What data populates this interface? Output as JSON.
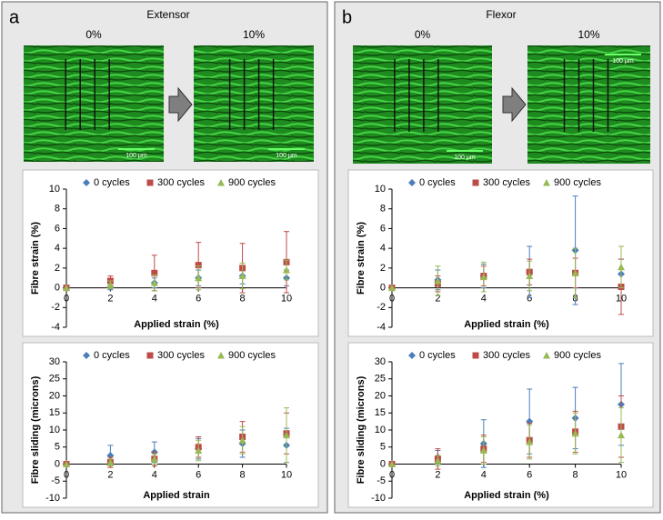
{
  "panels": [
    {
      "label": "a",
      "title": "Extensor",
      "images": [
        {
          "label": "0%",
          "scale": "100 μm"
        },
        {
          "label": "10%",
          "scale": "100 μm"
        }
      ]
    },
    {
      "label": "b",
      "title": "Flexor",
      "images": [
        {
          "label": "0%",
          "scale": "100 μm"
        },
        {
          "label": "10%",
          "scale": "100 μm"
        }
      ]
    }
  ],
  "chart_data": [
    {
      "type": "scatter",
      "y_label": "Fibre strain (%)",
      "x_label": "Applied strain (%)",
      "x": [
        0,
        2,
        4,
        6,
        8,
        10
      ],
      "xlim": [
        0,
        10
      ],
      "xticks": [
        0,
        2,
        4,
        6,
        8,
        10
      ],
      "ylim": [
        -4,
        10
      ],
      "yticks": [
        -4,
        -2,
        0,
        2,
        4,
        6,
        8,
        10
      ],
      "series": [
        {
          "name": "0 cycles",
          "color": "#4a7ebb",
          "marker": "diamond",
          "values": [
            0,
            0.1,
            0.5,
            1.0,
            1.2,
            1.0
          ],
          "errors": [
            0,
            0.3,
            0.5,
            0.8,
            0.8,
            0.8
          ]
        },
        {
          "name": "300 cycles",
          "color": "#be4b48",
          "marker": "square",
          "values": [
            0,
            0.7,
            1.5,
            2.3,
            2.0,
            2.6
          ],
          "errors": [
            0,
            0.5,
            1.8,
            2.3,
            2.5,
            3.1
          ]
        },
        {
          "name": "900 cycles",
          "color": "#98b954",
          "marker": "triangle",
          "values": [
            0,
            0.3,
            0.5,
            1.0,
            1.2,
            1.8
          ],
          "errors": [
            0,
            0.4,
            0.8,
            1.2,
            1.3,
            1.0
          ]
        }
      ]
    },
    {
      "type": "scatter",
      "y_label": "Fibre sliding (microns)",
      "x_label": "Applied strain",
      "x": [
        0,
        2,
        4,
        6,
        8,
        10
      ],
      "xlim": [
        0,
        10
      ],
      "xticks": [
        0,
        2,
        4,
        6,
        8,
        10
      ],
      "ylim": [
        -10,
        30
      ],
      "yticks": [
        -10,
        -5,
        0,
        5,
        10,
        15,
        20,
        25,
        30
      ],
      "series": [
        {
          "name": "0 cycles",
          "color": "#4a7ebb",
          "marker": "diamond",
          "values": [
            0,
            2.5,
            3.5,
            4.5,
            6,
            5.5
          ],
          "errors": [
            0,
            3,
            3,
            3,
            4,
            5
          ]
        },
        {
          "name": "300 cycles",
          "color": "#be4b48",
          "marker": "square",
          "values": [
            0,
            0.5,
            1.5,
            5,
            8,
            9
          ],
          "errors": [
            0,
            1.5,
            2,
            3,
            4.5,
            6
          ]
        },
        {
          "name": "900 cycles",
          "color": "#98b954",
          "marker": "triangle",
          "values": [
            0,
            0.5,
            1.5,
            4,
            7,
            8.5
          ],
          "errors": [
            0,
            1,
            1.5,
            3,
            4,
            8
          ]
        }
      ]
    },
    {
      "type": "scatter",
      "y_label": "Fibre strain (%)",
      "x_label": "Applied strain (%)",
      "x": [
        0,
        2,
        4,
        6,
        8,
        10
      ],
      "xlim": [
        0,
        10
      ],
      "xticks": [
        0,
        2,
        4,
        6,
        8,
        10
      ],
      "ylim": [
        -4,
        10
      ],
      "yticks": [
        -4,
        -2,
        0,
        2,
        4,
        6,
        8,
        10
      ],
      "series": [
        {
          "name": "0 cycles",
          "color": "#4a7ebb",
          "marker": "diamond",
          "values": [
            0,
            0.8,
            1.2,
            1.6,
            3.8,
            1.4
          ],
          "errors": [
            0,
            1,
            1.2,
            2.6,
            5.5,
            1.5
          ]
        },
        {
          "name": "300 cycles",
          "color": "#be4b48",
          "marker": "square",
          "values": [
            0,
            0.4,
            1.2,
            1.6,
            1.5,
            0.1
          ],
          "errors": [
            0,
            0.8,
            1,
            1.3,
            1.5,
            2.8
          ]
        },
        {
          "name": "900 cycles",
          "color": "#98b954",
          "marker": "triangle",
          "values": [
            0,
            0.7,
            1.1,
            1.2,
            1.5,
            2.1
          ],
          "errors": [
            0,
            1.5,
            1.5,
            1.5,
            2.5,
            2.1
          ]
        }
      ]
    },
    {
      "type": "scatter",
      "y_label": "Fibre sliding (microns)",
      "x_label": "Applied strain (%)",
      "x": [
        0,
        2,
        4,
        6,
        8,
        10
      ],
      "xlim": [
        0,
        10
      ],
      "xticks": [
        0,
        2,
        4,
        6,
        8,
        10
      ],
      "ylim": [
        -10,
        30
      ],
      "yticks": [
        -10,
        -5,
        0,
        5,
        10,
        15,
        20,
        25,
        30
      ],
      "series": [
        {
          "name": "0 cycles",
          "color": "#4a7ebb",
          "marker": "diamond",
          "values": [
            0,
            2,
            6,
            12.5,
            13.5,
            17.5
          ],
          "errors": [
            0,
            2,
            7,
            9.5,
            9,
            12
          ]
        },
        {
          "name": "300 cycles",
          "color": "#be4b48",
          "marker": "square",
          "values": [
            0,
            1.5,
            4.5,
            7,
            9.5,
            11
          ],
          "errors": [
            0,
            3,
            4,
            5,
            6,
            9
          ]
        },
        {
          "name": "900 cycles",
          "color": "#98b954",
          "marker": "triangle",
          "values": [
            0,
            1,
            4,
            6.5,
            9,
            8.5
          ],
          "errors": [
            0,
            1.5,
            4,
            5,
            6,
            8
          ]
        }
      ]
    }
  ]
}
